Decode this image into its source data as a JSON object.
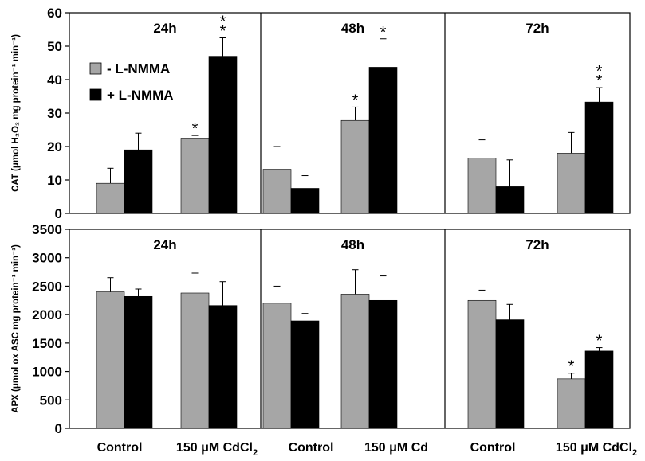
{
  "figure": {
    "x_labels": [
      "Control",
      "150 μM CdCl",
      "Control",
      "150 μM Cd",
      "Control",
      "150 μM CdCl"
    ],
    "x_label_subscripts": [
      "",
      "2",
      "",
      "",
      "",
      "2"
    ]
  },
  "colors": {
    "minus": "#a6a6a6",
    "plus": "#000000",
    "axis": "#000000"
  },
  "chart_data": [
    {
      "type": "bar",
      "ylabel": "CAT (μmol H₂O₂ mg protein⁻¹ min⁻¹)",
      "ylim": [
        0,
        60
      ],
      "yticks": [
        0,
        10,
        20,
        30,
        40,
        50,
        60
      ],
      "legend": {
        "placement": "top-left",
        "entries": [
          "- L-NMMA",
          "+ L-NMMA"
        ]
      },
      "panels": [
        {
          "label": "24h",
          "categories": [
            "Control",
            "150 μM CdCl2"
          ],
          "series": [
            {
              "name": "- L-NMMA",
              "values": [
                9,
                22.5
              ],
              "errors": [
                4.5,
                0.8
              ],
              "marks": [
                "",
                "*"
              ]
            },
            {
              "name": "+ L-NMMA",
              "values": [
                19,
                47
              ],
              "errors": [
                5,
                5.5
              ],
              "marks": [
                "",
                "**"
              ]
            }
          ]
        },
        {
          "label": "48h",
          "categories": [
            "Control",
            "150 μM Cd"
          ],
          "series": [
            {
              "name": "- L-NMMA",
              "values": [
                13.2,
                27.8
              ],
              "errors": [
                6.8,
                4
              ],
              "marks": [
                "",
                "*"
              ]
            },
            {
              "name": "+ L-NMMA",
              "values": [
                7.5,
                43.7
              ],
              "errors": [
                3.8,
                8.5
              ],
              "marks": [
                "",
                "*"
              ]
            }
          ]
        },
        {
          "label": "72h",
          "categories": [
            "Control",
            "150 μM CdCl2"
          ],
          "series": [
            {
              "name": "- L-NMMA",
              "values": [
                16.5,
                18
              ],
              "errors": [
                5.5,
                6.2
              ],
              "marks": [
                "",
                ""
              ]
            },
            {
              "name": "+ L-NMMA",
              "values": [
                8,
                33.3
              ],
              "errors": [
                8,
                4.3
              ],
              "marks": [
                "",
                "**"
              ]
            }
          ]
        }
      ]
    },
    {
      "type": "bar",
      "ylabel": "APX (μmol ox ASC mg protein⁻¹ min⁻¹)",
      "ylim": [
        0,
        3500
      ],
      "yticks": [
        0,
        500,
        1000,
        1500,
        2000,
        2500,
        3000,
        3500
      ],
      "panels": [
        {
          "label": "24h",
          "categories": [
            "Control",
            "150 μM CdCl2"
          ],
          "series": [
            {
              "name": "- L-NMMA",
              "values": [
                2400,
                2380
              ],
              "errors": [
                250,
                350
              ],
              "marks": [
                "",
                ""
              ]
            },
            {
              "name": "+ L-NMMA",
              "values": [
                2320,
                2160
              ],
              "errors": [
                130,
                420
              ],
              "marks": [
                "",
                ""
              ]
            }
          ]
        },
        {
          "label": "48h",
          "categories": [
            "Control",
            "150 μM Cd"
          ],
          "series": [
            {
              "name": "- L-NMMA",
              "values": [
                2200,
                2360
              ],
              "errors": [
                300,
                430
              ],
              "marks": [
                "",
                ""
              ]
            },
            {
              "name": "+ L-NMMA",
              "values": [
                1890,
                2250
              ],
              "errors": [
                130,
                430
              ],
              "marks": [
                "",
                ""
              ]
            }
          ]
        },
        {
          "label": "72h",
          "categories": [
            "Control",
            "150 μM CdCl2"
          ],
          "series": [
            {
              "name": "- L-NMMA",
              "values": [
                2250,
                870
              ],
              "errors": [
                180,
                100
              ],
              "marks": [
                "",
                "*"
              ]
            },
            {
              "name": "+ L-NMMA",
              "values": [
                1910,
                1360
              ],
              "errors": [
                270,
                60
              ],
              "marks": [
                "",
                "*"
              ]
            }
          ]
        }
      ]
    }
  ]
}
